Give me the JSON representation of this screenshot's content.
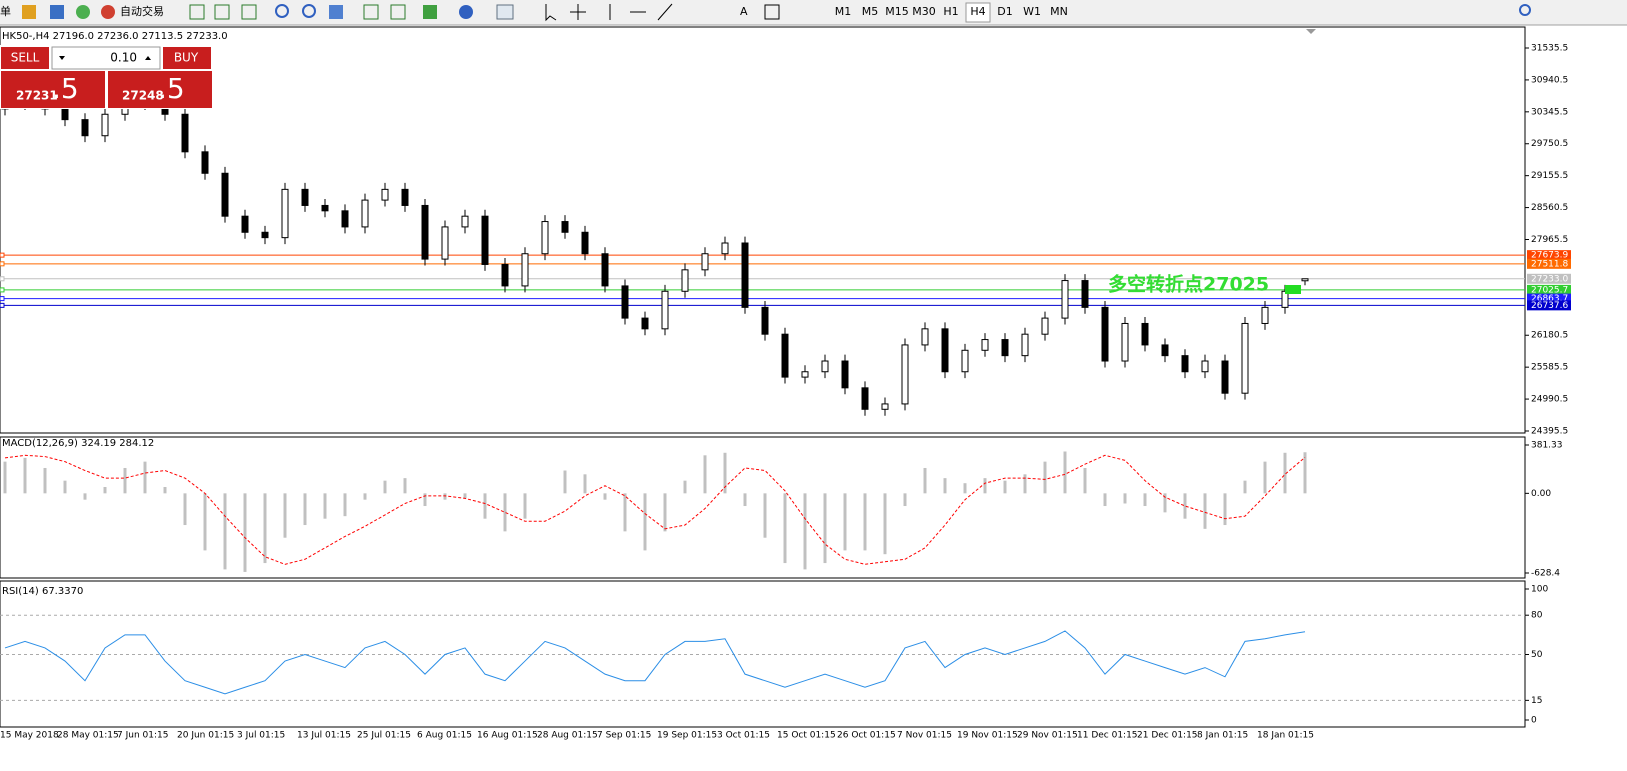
{
  "toolbar": {
    "items": [
      "单",
      "自动交易"
    ],
    "timeframes": [
      "M1",
      "M5",
      "M15",
      "M30",
      "H1",
      "H4",
      "D1",
      "W1",
      "MN"
    ]
  },
  "trade_panel": {
    "sell_label": "SELL",
    "buy_label": "BUY",
    "volume": "0.10",
    "sell_price": "27231",
    "sell_pips": ".5",
    "buy_price": "27248",
    "buy_pips": ".5"
  },
  "chart_data": [
    {
      "type": "candlestick",
      "title": "HK50-,H4  27196.0 27236.0 27113.5 27233.0",
      "categories": [
        "15 May 2018",
        null,
        null,
        "28 May 01:15",
        null,
        null,
        "7 Jun 01:15",
        null,
        null,
        "20 Jun 01:15",
        null,
        null,
        "3 Jul 01:15",
        null,
        null,
        "13 Jul 01:15",
        null,
        null,
        "25 Jul 01:15",
        null,
        null,
        "6 Aug 01:15",
        null,
        null,
        "16 Aug 01:15",
        null,
        null,
        "28 Aug 01:15",
        null,
        null,
        "7 Sep 01:15",
        null,
        null,
        "19 Sep 01:15",
        null,
        null,
        "3 Oct 01:15",
        null,
        null,
        "15 Oct 01:15",
        null,
        null,
        "26 Oct 01:15",
        null,
        null,
        "7 Nov 01:15",
        null,
        null,
        "19 Nov 01:15",
        null,
        null,
        "29 Nov 01:15",
        null,
        null,
        "11 Dec 01:15",
        null,
        null,
        "21 Dec 01:15",
        null,
        null,
        "8 Jan 01:15",
        null,
        null,
        "18 Jan 01:15",
        null,
        null
      ],
      "open": [
        30400,
        30500,
        30600,
        30400,
        30200,
        29900,
        30300,
        30500,
        30600,
        30300,
        29600,
        29200,
        28400,
        28100,
        28000,
        28900,
        28600,
        28500,
        28200,
        28700,
        28900,
        28600,
        27600,
        28200,
        28400,
        27500,
        27100,
        27700,
        28300,
        28100,
        27700,
        27100,
        26500,
        26300,
        27000,
        27400,
        27700,
        27900,
        26700,
        26200,
        25400,
        25500,
        25700,
        25200,
        24800,
        24900,
        26000,
        26300,
        25500,
        25900,
        26100,
        25800,
        26200,
        26500,
        27200,
        26700,
        25700,
        26400,
        26000,
        25800,
        25500,
        25700,
        25100,
        26400,
        26700,
        27196
      ],
      "high": [
        30620,
        30720,
        30720,
        30520,
        30320,
        30420,
        30620,
        30720,
        30720,
        30420,
        29720,
        29320,
        28520,
        28220,
        29020,
        29020,
        28720,
        28620,
        28820,
        29020,
        29020,
        28720,
        28320,
        28520,
        28520,
        27620,
        27820,
        28420,
        28420,
        28220,
        27820,
        27220,
        26620,
        27120,
        27520,
        27820,
        28020,
        28020,
        26820,
        26320,
        25620,
        25820,
        25820,
        25320,
        25020,
        26120,
        26420,
        26420,
        26020,
        26220,
        26220,
        26320,
        26620,
        27320,
        27320,
        26820,
        26520,
        26520,
        26120,
        25920,
        25820,
        25820,
        26520,
        26820,
        27120,
        27236
      ],
      "low": [
        30280,
        30380,
        30280,
        30080,
        29780,
        29780,
        30180,
        30380,
        30180,
        29480,
        29080,
        28280,
        27980,
        27880,
        27880,
        28480,
        28380,
        28080,
        28080,
        28580,
        28480,
        27480,
        27480,
        28080,
        27380,
        26980,
        26980,
        27580,
        27980,
        27580,
        26980,
        26380,
        26180,
        26180,
        26880,
        27280,
        27580,
        26580,
        26080,
        25280,
        25280,
        25380,
        25080,
        24680,
        24680,
        24780,
        25880,
        25380,
        25380,
        25780,
        25680,
        25680,
        26080,
        26380,
        26580,
        25580,
        25580,
        25880,
        25680,
        25380,
        25380,
        24980,
        24980,
        26280,
        26580,
        27113.5
      ],
      "close": [
        30500,
        30600,
        30400,
        30200,
        29900,
        30300,
        30500,
        30600,
        30300,
        29600,
        29200,
        28400,
        28100,
        28000,
        28900,
        28600,
        28500,
        28200,
        28700,
        28900,
        28600,
        27600,
        28200,
        28400,
        27500,
        27100,
        27700,
        28300,
        28100,
        27700,
        27100,
        26500,
        26300,
        27000,
        27400,
        27700,
        27900,
        26700,
        26200,
        25400,
        25500,
        25700,
        25200,
        24800,
        24900,
        26000,
        26300,
        25500,
        25900,
        26100,
        25800,
        26200,
        26500,
        27200,
        26700,
        25700,
        26400,
        26000,
        25800,
        25500,
        25700,
        25100,
        26400,
        26700,
        27000,
        27233
      ],
      "ylim": [
        24358,
        31927
      ],
      "yticks": [
        24395.5,
        24990.5,
        25585.5,
        26180.5,
        27965.5,
        28560.5,
        29155.5,
        29750.5,
        30345.5,
        30940.5,
        31535.5
      ],
      "hlines": [
        {
          "value": 27673.9,
          "color": "#ff4500"
        },
        {
          "value": 27511.8,
          "color": "#ff6a00"
        },
        {
          "value": 27233,
          "label": "27233.0",
          "color": "#c0c0c0"
        },
        {
          "value": 27025.7,
          "color": "#32cd32"
        },
        {
          "value": 26863.7,
          "color": "#1e1eff"
        },
        {
          "value": 26737.6,
          "color": "#0000cd"
        }
      ],
      "annotation": "多空转折点27025",
      "annotation_color": "#33dd33"
    },
    {
      "type": "macd",
      "title": "MACD(12,26,9) 324.19 284.12",
      "values": [
        250,
        280,
        200,
        100,
        -50,
        50,
        200,
        250,
        50,
        -250,
        -450,
        -600,
        -620,
        -550,
        -350,
        -250,
        -200,
        -180,
        -50,
        100,
        120,
        -100,
        -50,
        -40,
        -200,
        -300,
        -200,
        0,
        180,
        150,
        -50,
        -300,
        -450,
        -300,
        100,
        300,
        320,
        -100,
        -350,
        -550,
        -600,
        -550,
        -450,
        -450,
        -480,
        -100,
        200,
        120,
        80,
        120,
        100,
        150,
        250,
        330,
        200,
        -100,
        -80,
        -100,
        -150,
        -200,
        -280,
        -250,
        100,
        250,
        320,
        324.19
      ],
      "signal": [
        280,
        300,
        290,
        250,
        180,
        120,
        120,
        160,
        180,
        120,
        0,
        -180,
        -350,
        -500,
        -560,
        -520,
        -430,
        -340,
        -260,
        -170,
        -80,
        -20,
        -20,
        -40,
        -80,
        -150,
        -220,
        -220,
        -140,
        -20,
        60,
        -20,
        -160,
        -280,
        -250,
        -120,
        50,
        200,
        180,
        20,
        -200,
        -400,
        -520,
        -560,
        -540,
        -520,
        -430,
        -250,
        -50,
        80,
        120,
        120,
        110,
        150,
        230,
        300,
        260,
        100,
        -30,
        -100,
        -150,
        -200,
        -180,
        -20,
        150,
        284.12
      ],
      "color": "#c0c0c0",
      "signal_color": "#ff0000",
      "ylim": [
        -628.4,
        381.33
      ],
      "yticks": [
        -628.4,
        {
          "value": 0,
          "label": "0.00"
        },
        381.33
      ]
    },
    {
      "type": "line",
      "title": "RSI(14) 67.3370",
      "values": [
        55,
        60,
        55,
        45,
        30,
        55,
        65,
        65,
        45,
        30,
        25,
        20,
        25,
        30,
        45,
        50,
        45,
        40,
        55,
        60,
        50,
        35,
        50,
        55,
        35,
        30,
        45,
        60,
        55,
        45,
        35,
        30,
        30,
        50,
        60,
        60,
        62,
        35,
        30,
        25,
        30,
        35,
        30,
        25,
        30,
        55,
        60,
        40,
        50,
        55,
        50,
        55,
        60,
        68,
        55,
        35,
        50,
        45,
        40,
        35,
        40,
        33,
        60,
        62,
        65,
        67.337
      ],
      "color": "#2b8ee6",
      "ylim": [
        0,
        100
      ],
      "yticks": [
        0,
        15,
        50,
        80,
        100
      ],
      "grid": "dashed"
    }
  ]
}
